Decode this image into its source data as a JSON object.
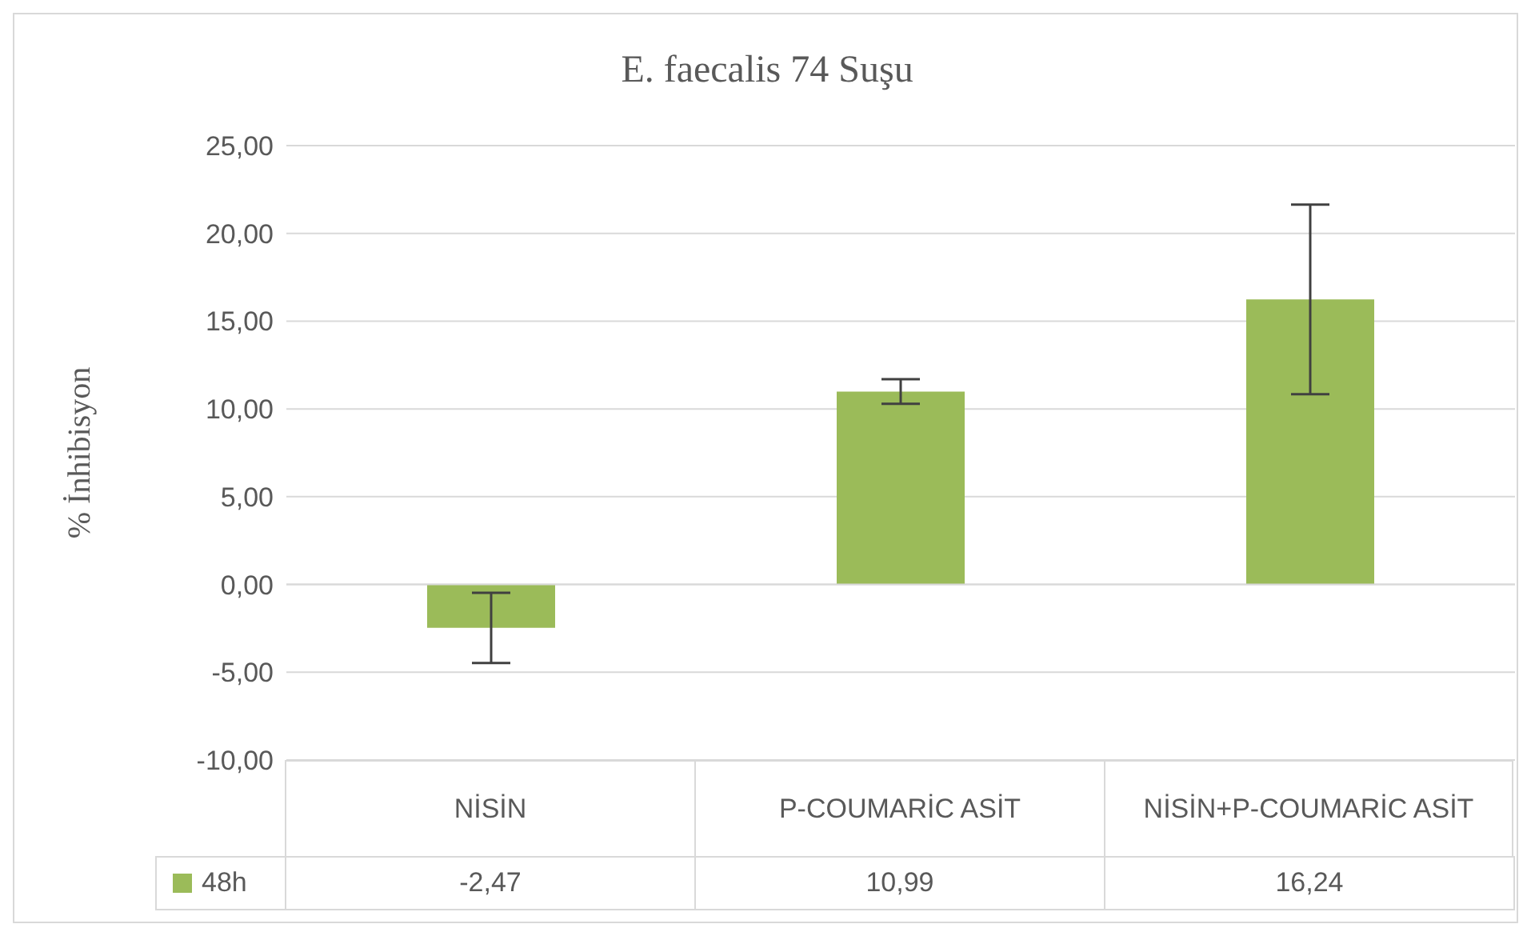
{
  "chart_data": {
    "type": "bar",
    "title": "E. faecalis 74 Suşu",
    "ylabel": "% İnhibisyon",
    "categories": [
      "NİSİN",
      "P-COUMARİC ASİT",
      "NİSİN+P-COUMARİC ASİT"
    ],
    "series": [
      {
        "name": "48h",
        "color": "#9bbb59",
        "values": [
          -2.47,
          10.99,
          16.24
        ],
        "errors": [
          2.0,
          0.7,
          5.4
        ],
        "value_labels": [
          "-2,47",
          "10,99",
          "16,24"
        ]
      }
    ],
    "ylim": [
      -10,
      25
    ],
    "yticks": [
      {
        "value": -10,
        "label": "-10,00"
      },
      {
        "value": -5,
        "label": "-5,00"
      },
      {
        "value": 0,
        "label": "0,00"
      },
      {
        "value": 5,
        "label": "5,00"
      },
      {
        "value": 10,
        "label": "10,00"
      },
      {
        "value": 15,
        "label": "15,00"
      },
      {
        "value": 20,
        "label": "20,00"
      },
      {
        "value": 25,
        "label": "25,00"
      }
    ],
    "grid": "y",
    "legend": "bottom"
  }
}
